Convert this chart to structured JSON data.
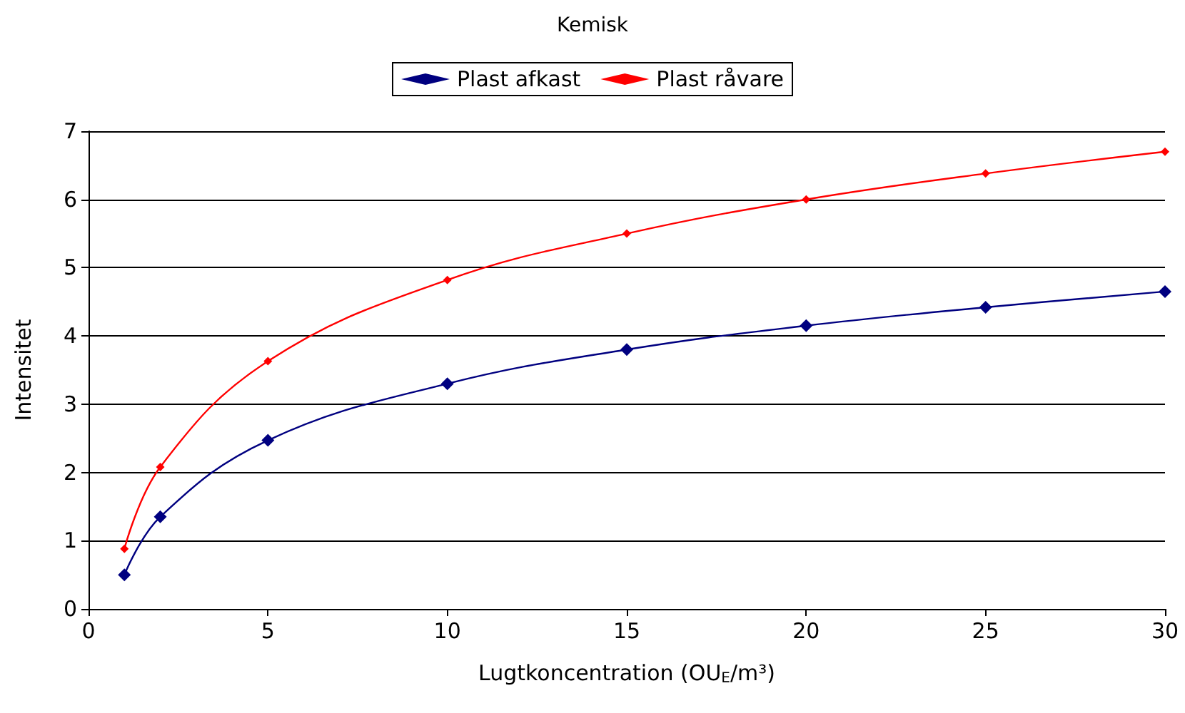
{
  "chart_data": {
    "type": "line",
    "title": "Kemisk",
    "xlabel": "Lugtkoncentration (OU$_{E}$/m³)",
    "ylabel": "Intensitet",
    "x": [
      1,
      2,
      5,
      10,
      15,
      20,
      25,
      30
    ],
    "series": [
      {
        "name": "Plast afkast",
        "color": "#000080",
        "marker": "diamond",
        "values": [
          0.5,
          1.35,
          2.47,
          3.3,
          3.8,
          4.15,
          4.42,
          4.65
        ]
      },
      {
        "name": "Plast råvare",
        "color": "#ff0000",
        "marker": "diamond",
        "values": [
          0.88,
          2.08,
          3.63,
          4.82,
          5.5,
          6.0,
          6.38,
          6.7
        ]
      }
    ],
    "xlim": [
      0,
      30
    ],
    "xticks": [
      0,
      5,
      10,
      15,
      20,
      25,
      30
    ],
    "ylim": [
      0,
      7
    ],
    "yticks": [
      0,
      1,
      2,
      3,
      4,
      5,
      6,
      7
    ],
    "grid": "y",
    "legend": "top",
    "line_style": "solid"
  }
}
